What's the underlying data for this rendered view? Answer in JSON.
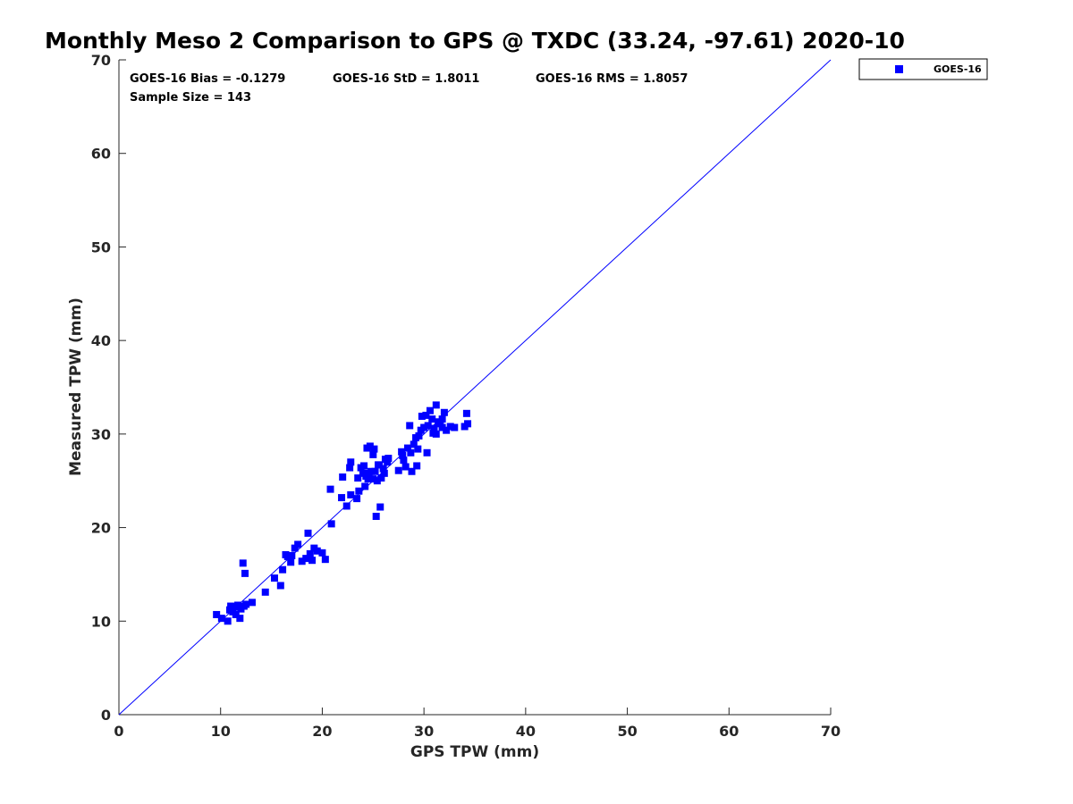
{
  "chart_data": {
    "type": "scatter",
    "title": "Monthly Meso 2 Comparison to GPS @ TXDC (33.24, -97.61) 2020-10",
    "xlabel": "GPS TPW (mm)",
    "ylabel": "Measured TPW (mm)",
    "xlim": [
      0,
      70
    ],
    "ylim": [
      0,
      70
    ],
    "xticks": [
      "0",
      "10",
      "20",
      "30",
      "40",
      "50",
      "60",
      "70"
    ],
    "yticks": [
      "0",
      "10",
      "20",
      "30",
      "40",
      "50",
      "60",
      "70"
    ],
    "grid": false,
    "legend_position": "outside-top-right",
    "color": "#0000ff",
    "reference_line": {
      "x": [
        0,
        70
      ],
      "y": [
        0,
        70
      ]
    },
    "stats": {
      "bias": "GOES-16 Bias = -0.1279",
      "std": "GOES-16 StD = 1.8011",
      "rms": "GOES-16 RMS = 1.8057",
      "sample_size": "Sample Size = 143"
    },
    "series": [
      {
        "name": "GOES-16",
        "x": [
          9.6,
          10.1,
          10.7,
          11.0,
          11.2,
          11.5,
          11.7,
          11.9,
          12.0,
          12.3,
          12.5,
          13.1,
          12.2,
          12.4,
          10.9,
          11.3,
          14.4,
          15.3,
          15.9,
          16.1,
          16.4,
          16.6,
          16.9,
          17.0,
          17.3,
          17.6,
          18.0,
          18.4,
          18.6,
          18.8,
          19.0,
          19.2,
          19.5,
          20.0,
          20.3,
          20.8,
          20.9,
          21.9,
          22.0,
          22.4,
          22.7,
          22.8,
          22.8,
          23.4,
          23.5,
          23.6,
          23.8,
          24.0,
          24.1,
          24.2,
          24.4,
          24.5,
          24.7,
          25.0,
          25.1,
          25.3,
          25.4,
          25.5,
          25.7,
          25.8,
          25.2,
          24.3,
          24.6,
          26.0,
          26.2,
          26.4,
          27.5,
          27.8,
          28.0,
          28.2,
          28.4,
          28.6,
          28.8,
          29.0,
          29.3,
          29.5,
          29.8,
          30.0,
          30.2,
          30.4,
          30.6,
          30.8,
          31.0,
          31.2,
          31.4,
          31.6,
          31.8,
          32.2,
          32.6,
          34.0,
          34.2,
          34.3,
          24.5,
          29.7,
          31.2,
          26.5,
          27.9,
          29.4,
          30.3,
          25.0,
          26.1,
          28.7,
          31.8,
          32.0,
          33.0,
          29.2,
          24.8,
          25.6,
          30.9
        ],
        "y": [
          10.7,
          10.3,
          10.0,
          11.6,
          11.0,
          10.7,
          11.7,
          10.3,
          11.3,
          11.6,
          11.8,
          12.0,
          16.2,
          15.1,
          11.2,
          11.5,
          13.1,
          14.6,
          13.8,
          15.5,
          17.1,
          16.9,
          16.3,
          17.0,
          17.8,
          18.2,
          16.4,
          16.7,
          19.4,
          17.2,
          16.5,
          17.8,
          17.5,
          17.3,
          16.6,
          24.1,
          20.4,
          23.2,
          25.4,
          22.3,
          26.4,
          27.0,
          23.5,
          23.1,
          25.3,
          23.9,
          26.4,
          25.8,
          26.6,
          24.4,
          28.5,
          25.2,
          28.7,
          27.8,
          28.4,
          21.2,
          25.0,
          26.7,
          22.2,
          25.3,
          26.0,
          25.5,
          25.6,
          26.3,
          27.3,
          27.0,
          26.1,
          28.1,
          27.2,
          26.5,
          28.5,
          30.9,
          26.0,
          28.9,
          26.6,
          29.8,
          31.9,
          30.7,
          32.0,
          30.9,
          32.5,
          31.6,
          30.6,
          33.1,
          31.3,
          31.1,
          31.6,
          30.4,
          30.8,
          30.8,
          32.2,
          31.1,
          25.8,
          30.4,
          30.0,
          27.4,
          27.7,
          28.4,
          28.0,
          25.2,
          25.8,
          28.0,
          30.7,
          32.3,
          30.7,
          29.6,
          26.0,
          26.7,
          30.1
        ]
      }
    ]
  }
}
